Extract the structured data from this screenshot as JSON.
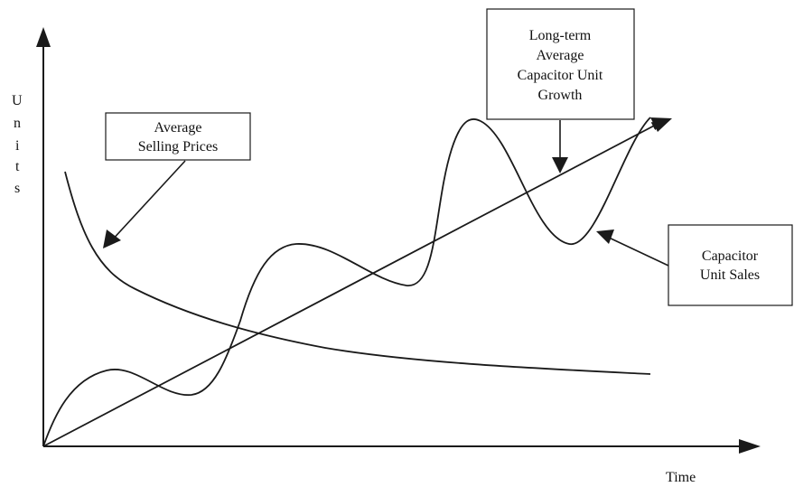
{
  "axes": {
    "y_label_letters": [
      "U",
      "n",
      "i",
      "t",
      "s"
    ],
    "x_label": "Time"
  },
  "callouts": {
    "asp": {
      "lines": [
        "Average",
        "Selling Prices"
      ]
    },
    "growth": {
      "lines": [
        "Long-term",
        "Average",
        "Capacitor Unit",
        "Growth"
      ]
    },
    "sales": {
      "lines": [
        "Capacitor",
        "Unit Sales"
      ]
    }
  },
  "curves": {
    "asp": "Average Selling Prices",
    "growth": "Long-term Average Capacitor Unit Growth",
    "sales": "Capacitor Unit Sales"
  }
}
